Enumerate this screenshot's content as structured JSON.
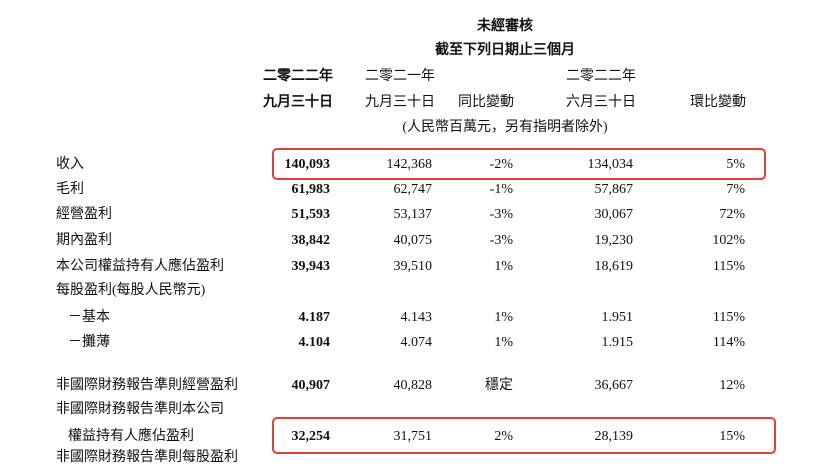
{
  "header": {
    "title": "未經審核",
    "period": "截至下列日期止三個月",
    "columns": [
      [
        "二零二二年",
        "九月三十日"
      ],
      [
        "二零二一年",
        "九月三十日"
      ],
      [
        "同比變動"
      ],
      [
        "二零二二年",
        "六月三十日"
      ],
      [
        "環比變動"
      ]
    ],
    "unit": "(人民幣百萬元，另有指明者除外)"
  },
  "table": {
    "rows": [
      {
        "label": [
          "收入"
        ],
        "values": [
          "140,093",
          "142,368",
          "-2%",
          "134,034",
          "5%"
        ]
      },
      {
        "label": [
          "毛利"
        ],
        "values": [
          "61,983",
          "62,747",
          "-1%",
          "57,867",
          "7%"
        ]
      },
      {
        "label": [
          "經營盈利"
        ],
        "values": [
          "51,593",
          "53,137",
          "-3%",
          "30,067",
          "72%"
        ]
      },
      {
        "label": [
          "期內盈利"
        ],
        "values": [
          "38,842",
          "40,075",
          "-3%",
          "19,230",
          "102%"
        ]
      },
      {
        "label": [
          "本公司權益持有人應佔盈利"
        ],
        "values": [
          "39,943",
          "39,510",
          "1%",
          "18,619",
          "115%"
        ]
      },
      {
        "label": [
          "每股盈利(每股人民幣元)"
        ]
      },
      {
        "label": [
          "－基本"
        ],
        "values": [
          "4.187",
          "4.143",
          "1%",
          "1.951",
          "115%"
        ]
      },
      {
        "label": [
          "－攤薄"
        ],
        "values": [
          "4.104",
          "4.074",
          "1%",
          "1.915",
          "114%"
        ]
      },
      {
        "label": [
          "非國際財務報告準則經營盈利"
        ],
        "values": [
          "40,907",
          "40,828",
          "穩定",
          "36,667",
          "12%"
        ]
      },
      {
        "label": [
          "非國際財務報告準則本公司",
          "權益持有人應佔盈利"
        ],
        "values": [
          "32,254",
          "31,751",
          "2%",
          "28,139",
          "15%"
        ]
      },
      {
        "label": [
          "非國際財務報告準則每股盈利"
        ]
      }
    ]
  }
}
